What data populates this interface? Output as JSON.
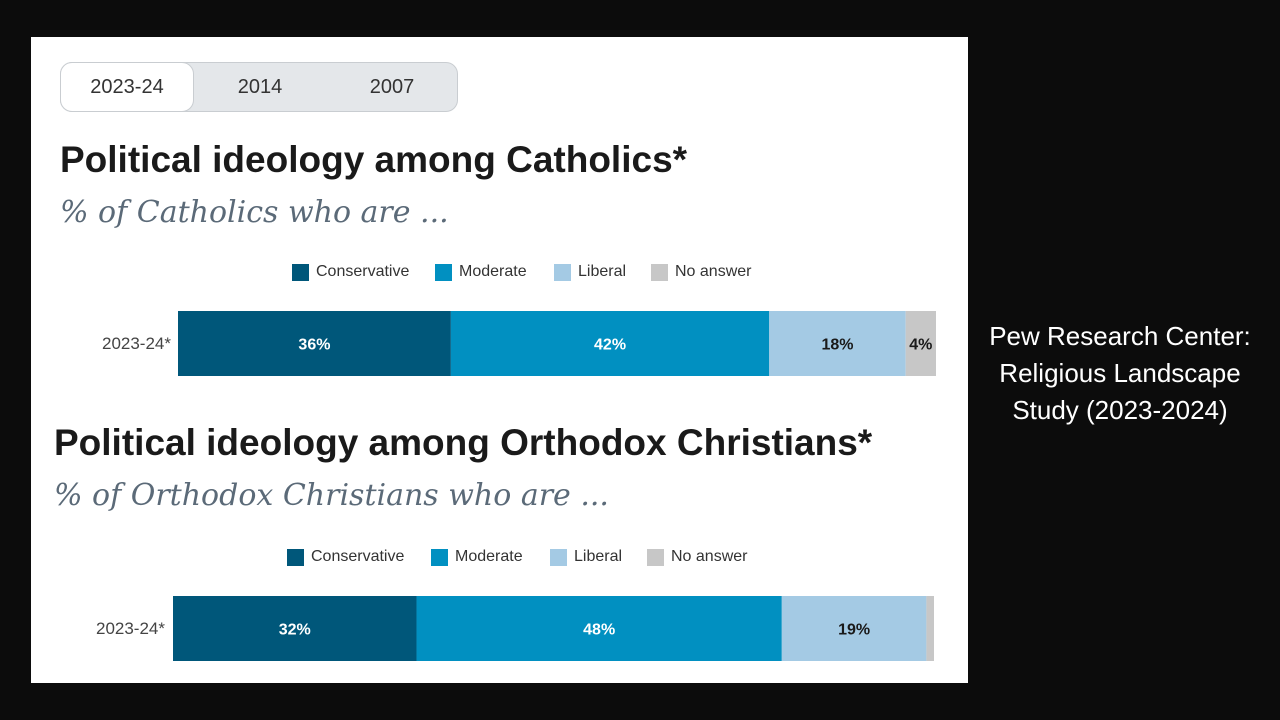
{
  "tabs": [
    {
      "label": "2023-24",
      "active": true
    },
    {
      "label": "2014",
      "active": false
    },
    {
      "label": "2007",
      "active": false
    }
  ],
  "side_note": {
    "line1": "Pew Research Center:",
    "line2": "Religious Landscape",
    "line3": "Study (2023-2024)"
  },
  "colors": {
    "conservative": "#00577a",
    "moderate": "#0190c1",
    "liberal": "#a4cae4",
    "no_answer": "#c7c7c7"
  },
  "chart_data": [
    {
      "type": "bar",
      "orientation": "horizontal-stacked",
      "title": "Political ideology among Catholics*",
      "subtitle": "% of Catholics who are ...",
      "legend": [
        "Conservative",
        "Moderate",
        "Liberal",
        "No answer"
      ],
      "legend_position": "top-center",
      "categories": [
        "2023-24*"
      ],
      "series": [
        {
          "name": "Conservative",
          "values": [
            36
          ],
          "labels": [
            "36%"
          ]
        },
        {
          "name": "Moderate",
          "values": [
            42
          ],
          "labels": [
            "42%"
          ]
        },
        {
          "name": "Liberal",
          "values": [
            18
          ],
          "labels": [
            "18%"
          ]
        },
        {
          "name": "No answer",
          "values": [
            4
          ],
          "labels": [
            "4%"
          ]
        }
      ],
      "xlim": [
        0,
        100
      ],
      "grid": false
    },
    {
      "type": "bar",
      "orientation": "horizontal-stacked",
      "title": "Political ideology among Orthodox Christians*",
      "subtitle": "% of Orthodox Christians who are ...",
      "legend": [
        "Conservative",
        "Moderate",
        "Liberal",
        "No answer"
      ],
      "legend_position": "top-center",
      "categories": [
        "2023-24*"
      ],
      "series": [
        {
          "name": "Conservative",
          "values": [
            32
          ],
          "labels": [
            "32%"
          ]
        },
        {
          "name": "Moderate",
          "values": [
            48
          ],
          "labels": [
            "48%"
          ]
        },
        {
          "name": "Liberal",
          "values": [
            19
          ],
          "labels": [
            "19%"
          ]
        },
        {
          "name": "No answer",
          "values": [
            1
          ],
          "labels": [
            ""
          ]
        }
      ],
      "xlim": [
        0,
        100
      ],
      "grid": false
    }
  ]
}
